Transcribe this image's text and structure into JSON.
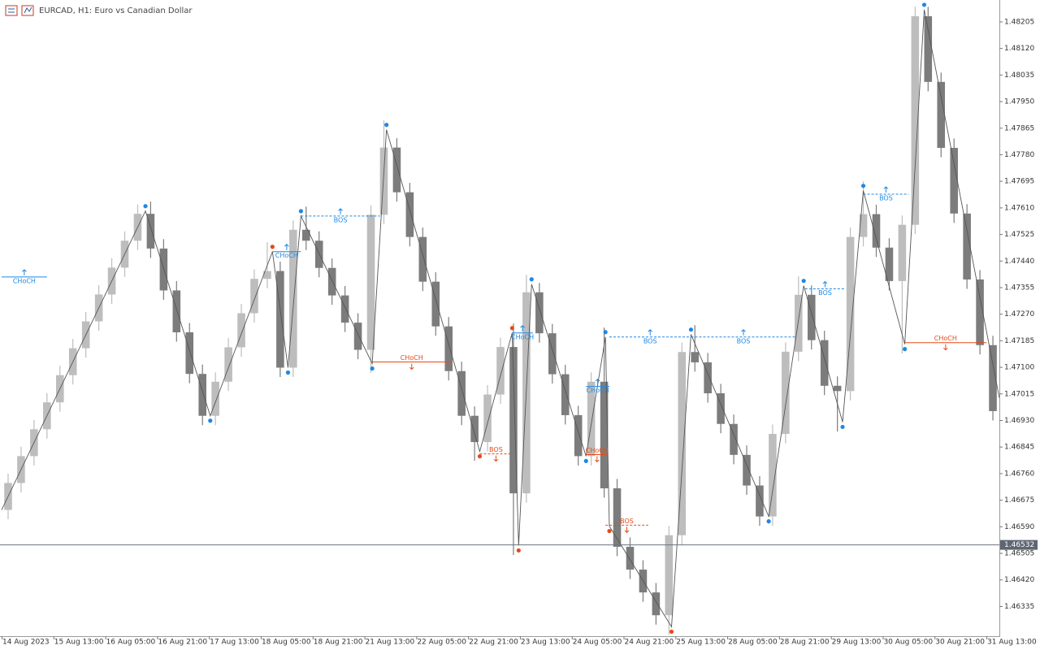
{
  "chart_data": {
    "type": "candlestick",
    "title": "EURCAD, H1:  Euro vs Canadian Dollar",
    "categories": [
      "14 Aug 2023",
      null,
      null,
      null,
      "15 Aug 13:00",
      null,
      null,
      null,
      "16 Aug 05:00",
      null,
      null,
      null,
      "16 Aug 21:00",
      null,
      null,
      null,
      "17 Aug 13:00",
      null,
      null,
      null,
      "18 Aug 05:00",
      null,
      null,
      null,
      "18 Aug 21:00",
      null,
      null,
      null,
      "21 Aug 13:00",
      null,
      null,
      null,
      "22 Aug 05:00",
      null,
      null,
      null,
      "22 Aug 21:00",
      null,
      null,
      null,
      "23 Aug 13:00",
      null,
      null,
      null,
      "24 Aug 05:00",
      null,
      null,
      null,
      "24 Aug 21:00",
      null,
      null,
      null,
      "25 Aug 13:00",
      null,
      null,
      null,
      "28 Aug 05:00",
      null,
      null,
      null,
      "28 Aug 21:00",
      null,
      null,
      null,
      "29 Aug 13:00",
      null,
      null,
      null,
      "30 Aug 05:00",
      null,
      null,
      null,
      "30 Aug 21:00",
      null,
      null,
      null,
      "31 Aug 13:00"
    ],
    "open": [
      1.46644,
      1.4673,
      1.46816,
      1.46902,
      1.46988,
      1.47075,
      1.47161,
      1.47247,
      1.47333,
      1.47419,
      1.47505,
      1.47591,
      1.4748,
      1.47346,
      1.47212,
      1.47079,
      1.46945,
      1.47054,
      1.47164,
      1.47273,
      1.47383,
      1.47408,
      1.47099,
      1.4754,
      1.47505,
      1.47418,
      1.4733,
      1.47243,
      1.47156,
      1.47588,
      1.47803,
      1.4766,
      1.47517,
      1.47374,
      1.47231,
      1.47088,
      1.46945,
      1.46861,
      1.47013,
      1.47165,
      1.46697,
      1.4734,
      1.47209,
      1.47078,
      1.46947,
      1.46816,
      1.47054,
      1.46713,
      1.46526,
      1.46453,
      1.4638,
      1.46307,
      1.46563,
      1.47149,
      1.47116,
      1.47017,
      1.46919,
      1.4682,
      1.46722,
      1.46623,
      1.46887,
      1.4715,
      1.47332,
      1.47187,
      1.47041,
      1.47024,
      1.47517,
      1.4759,
      1.47483,
      1.47376,
      1.47556,
      1.48223,
      1.48013,
      1.47802,
      1.47592,
      1.47381,
      1.47171
    ],
    "high": [
      1.4676,
      1.46846,
      1.46932,
      1.47018,
      1.47105,
      1.47191,
      1.47277,
      1.47363,
      1.47449,
      1.47535,
      1.47621,
      1.4763,
      1.4751,
      1.47376,
      1.47242,
      1.47109,
      1.47084,
      1.47194,
      1.47303,
      1.47413,
      1.475,
      1.47438,
      1.4757,
      1.47614,
      1.47535,
      1.47448,
      1.4736,
      1.47273,
      1.47618,
      1.4789,
      1.47833,
      1.4769,
      1.47547,
      1.47404,
      1.47261,
      1.47118,
      1.46975,
      1.47043,
      1.47195,
      1.4724,
      1.47396,
      1.4737,
      1.47239,
      1.47108,
      1.46977,
      1.47084,
      1.47227,
      1.46743,
      1.46556,
      1.46483,
      1.4641,
      1.46593,
      1.47179,
      1.47235,
      1.47146,
      1.47047,
      1.46949,
      1.4685,
      1.46752,
      1.46917,
      1.4718,
      1.47391,
      1.47362,
      1.47217,
      1.47071,
      1.47547,
      1.47695,
      1.4762,
      1.47513,
      1.47586,
      1.48254,
      1.48253,
      1.48043,
      1.47832,
      1.47622,
      1.47411,
      1.47201
    ],
    "low": [
      1.46614,
      1.467,
      1.46786,
      1.46872,
      1.46958,
      1.47045,
      1.47131,
      1.47217,
      1.47303,
      1.47389,
      1.47475,
      1.4745,
      1.47316,
      1.47182,
      1.47049,
      1.46915,
      1.46915,
      1.47024,
      1.47134,
      1.47243,
      1.47353,
      1.47069,
      1.47069,
      1.47475,
      1.47388,
      1.473,
      1.47213,
      1.47126,
      1.47082,
      1.47558,
      1.4763,
      1.47487,
      1.47344,
      1.47201,
      1.47058,
      1.46915,
      1.46801,
      1.46831,
      1.46983,
      1.465,
      1.46667,
      1.47179,
      1.47048,
      1.46917,
      1.46786,
      1.46786,
      1.46683,
      1.46496,
      1.46423,
      1.4635,
      1.46277,
      1.46245,
      1.46533,
      1.47086,
      1.46987,
      1.46889,
      1.4679,
      1.46692,
      1.46593,
      1.46593,
      1.46857,
      1.4712,
      1.47157,
      1.47011,
      1.46895,
      1.46994,
      1.47487,
      1.47453,
      1.47346,
      1.47144,
      1.47526,
      1.47983,
      1.47772,
      1.47562,
      1.47351,
      1.47141,
      1.4693
    ],
    "close": [
      1.4673,
      1.46816,
      1.46902,
      1.46988,
      1.47075,
      1.47161,
      1.47247,
      1.47333,
      1.47419,
      1.47505,
      1.47591,
      1.4748,
      1.47346,
      1.47212,
      1.47079,
      1.46945,
      1.47054,
      1.47164,
      1.47273,
      1.47383,
      1.47408,
      1.47099,
      1.4754,
      1.47505,
      1.47418,
      1.4733,
      1.47243,
      1.47156,
      1.47588,
      1.47803,
      1.4766,
      1.47517,
      1.47374,
      1.47231,
      1.47088,
      1.46945,
      1.46861,
      1.47013,
      1.47165,
      1.46697,
      1.4734,
      1.47209,
      1.47078,
      1.46947,
      1.46816,
      1.47054,
      1.46713,
      1.46526,
      1.46453,
      1.4638,
      1.46307,
      1.46563,
      1.47149,
      1.47116,
      1.47017,
      1.46919,
      1.4682,
      1.46722,
      1.46623,
      1.46887,
      1.4715,
      1.47332,
      1.47187,
      1.47041,
      1.47024,
      1.47517,
      1.4759,
      1.47483,
      1.47376,
      1.47556,
      1.48223,
      1.48013,
      1.47802,
      1.47592,
      1.47381,
      1.47171,
      1.4696
    ],
    "up_color": "#bdbdbd",
    "down_color": "#7c7c7c",
    "xlim": [
      0,
      77
    ],
    "ylim": [
      1.4624,
      1.48275
    ],
    "yticks": [
      1.46335,
      {
        "value": 1.4642,
        "label": "1.46420"
      },
      1.46505,
      {
        "value": 1.4659,
        "label": "1.46590"
      },
      1.46675,
      {
        "value": 1.4676,
        "label": "1.46760"
      },
      1.46845,
      {
        "value": 1.4693,
        "label": "1.46930"
      },
      1.47015,
      {
        "value": 1.471,
        "label": "1.47100"
      },
      1.47185,
      {
        "value": 1.4727,
        "label": "1.47270"
      },
      1.47355,
      {
        "value": 1.4744,
        "label": "1.47440"
      },
      1.47525,
      {
        "value": 1.4761,
        "label": "1.47610"
      },
      1.47695,
      {
        "value": 1.4778,
        "label": "1.47780"
      },
      1.47865,
      {
        "value": 1.4795,
        "label": "1.47950"
      },
      1.48035,
      {
        "value": 1.4812,
        "label": "1.48120"
      },
      1.48205
    ],
    "current_price": 1.46532,
    "zigzag": {
      "color": "#555555",
      "x": [
        0,
        11.1,
        16.1,
        20.9,
        22.1,
        23.1,
        28.6,
        29.7,
        36.9,
        39.4,
        39.9,
        40.9,
        45.1,
        46.6,
        46.9,
        51.7,
        53.2,
        59.2,
        61.9,
        64.9,
        66.5,
        69.7,
        71.2,
        77
      ],
      "values": [
        1.46644,
        1.476,
        1.46945,
        1.4747,
        1.47099,
        1.47584,
        1.47112,
        1.4786,
        1.46831,
        1.4721,
        1.4653,
        1.47366,
        1.46816,
        1.47197,
        1.46592,
        1.4627,
        1.47205,
        1.46623,
        1.47361,
        1.46925,
        1.47665,
        1.47174,
        1.48244,
        1.47002
      ],
      "pivot_colors": [
        null,
        "#1e88e5",
        "#1e88e5",
        "#e64a19",
        "#1e88e5",
        "#1e88e5",
        "#1e88e5",
        "#1e88e5",
        "#e64a19",
        "#e64a19",
        "#e64a19",
        "#1e88e5",
        "#1e88e5",
        "#1e88e5",
        "#e64a19",
        "#e64a19",
        "#1e88e5",
        "#1e88e5",
        "#1e88e5",
        "#1e88e5",
        "#1e88e5",
        "#1e88e5",
        "#1e88e5",
        null
      ]
    },
    "annotations": [
      {
        "label": "CHoCH",
        "price": 1.47389,
        "x": [
          0,
          3.5
        ],
        "color": "#1e88e5",
        "dashed": false,
        "side": "up"
      },
      {
        "label": "CHoCH",
        "price": 1.4747,
        "x": [
          20.9,
          23.1
        ],
        "color": "#1e88e5",
        "dashed": false,
        "side": "up"
      },
      {
        "label": "BOS",
        "price": 1.47584,
        "x": [
          23.1,
          29.2
        ],
        "color": "#1e88e5",
        "dashed": true,
        "side": "up"
      },
      {
        "label": "CHoCH",
        "price": 1.47117,
        "x": [
          28.6,
          34.7
        ],
        "color": "#e64a19",
        "dashed": false,
        "side": "down"
      },
      {
        "label": "BOS",
        "price": 1.46823,
        "x": [
          36.9,
          39.4
        ],
        "color": "#e64a19",
        "dashed": true,
        "side": "down"
      },
      {
        "label": "CHoCH",
        "price": 1.4721,
        "x": [
          39.4,
          41
        ],
        "color": "#1e88e5",
        "dashed": false,
        "side": "up"
      },
      {
        "label": "CHoCH",
        "price": 1.47039,
        "x": [
          45.1,
          46.9
        ],
        "color": "#1e88e5",
        "dashed": false,
        "side": "up"
      },
      {
        "label": "CHoCH",
        "price": 1.46821,
        "x": [
          45.1,
          46.8
        ],
        "color": "#e64a19",
        "dashed": false,
        "side": "down"
      },
      {
        "label": "BOS",
        "price": 1.46595,
        "x": [
          46.6,
          49.9
        ],
        "color": "#e64a19",
        "dashed": true,
        "side": "down"
      },
      {
        "label": "BOS",
        "price": 1.47197,
        "x": [
          46.9,
          53.2
        ],
        "color": "#1e88e5",
        "dashed": true,
        "side": "up"
      },
      {
        "label": "BOS",
        "price": 1.47197,
        "x": [
          53.2,
          61.3
        ],
        "color": "#1e88e5",
        "dashed": true,
        "side": "up"
      },
      {
        "label": "BOS",
        "price": 1.47351,
        "x": [
          62,
          65.1
        ],
        "color": "#1e88e5",
        "dashed": true,
        "side": "up"
      },
      {
        "label": "BOS",
        "price": 1.47654,
        "x": [
          66.5,
          70
        ],
        "color": "#1e88e5",
        "dashed": true,
        "side": "up"
      },
      {
        "label": "CHoCH",
        "price": 1.47179,
        "x": [
          69.7,
          76
        ],
        "color": "#e64a19",
        "dashed": false,
        "side": "down"
      }
    ]
  }
}
